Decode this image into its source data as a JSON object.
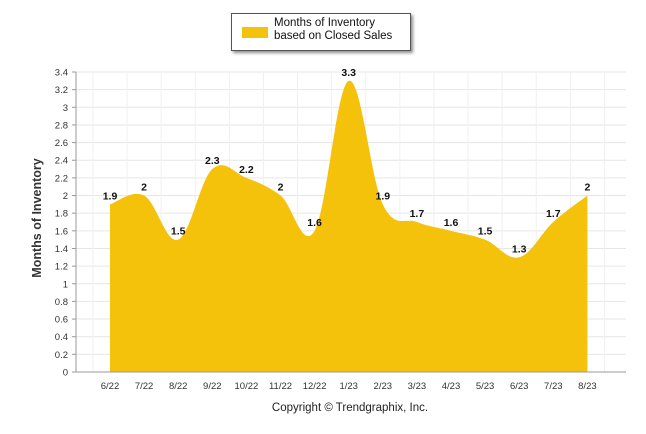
{
  "chart_data": {
    "type": "area",
    "legend": {
      "label": "Months of Inventory based on Closed Sales",
      "placement": "top-center"
    },
    "ylabel": "Months of Inventory",
    "xlabel": "",
    "ylim": [
      0,
      3.4
    ],
    "yticks": [
      "0",
      "0.2",
      "0.4",
      "0.6",
      "0.8",
      "1",
      "1.2",
      "1.4",
      "1.6",
      "1.8",
      "2",
      "2.2",
      "2.4",
      "2.6",
      "2.8",
      "3",
      "3.2",
      "3.4"
    ],
    "grid": true,
    "categories": [
      "6/22",
      "7/22",
      "8/22",
      "9/22",
      "10/22",
      "11/22",
      "12/22",
      "1/23",
      "2/23",
      "3/23",
      "4/23",
      "5/23",
      "6/23",
      "7/23",
      "8/23"
    ],
    "series": [
      {
        "name": "Months of Inventory based on Closed Sales",
        "values": [
          1.9,
          2,
          1.5,
          2.3,
          2.2,
          2,
          1.6,
          3.3,
          1.9,
          1.7,
          1.6,
          1.5,
          1.3,
          1.7,
          2
        ],
        "labels": [
          "1.9",
          "2",
          "1.5",
          "2.3",
          "2.2",
          "2",
          "1.6",
          "3.3",
          "1.9",
          "1.7",
          "1.6",
          "1.5",
          "1.3",
          "1.7",
          "2"
        ]
      }
    ],
    "colors": {
      "fill": "#f5c20b",
      "grid": "#e6e6e6",
      "axis": "#999999"
    }
  },
  "footer": {
    "copyright": "Copyright © Trendgraphix, Inc."
  }
}
